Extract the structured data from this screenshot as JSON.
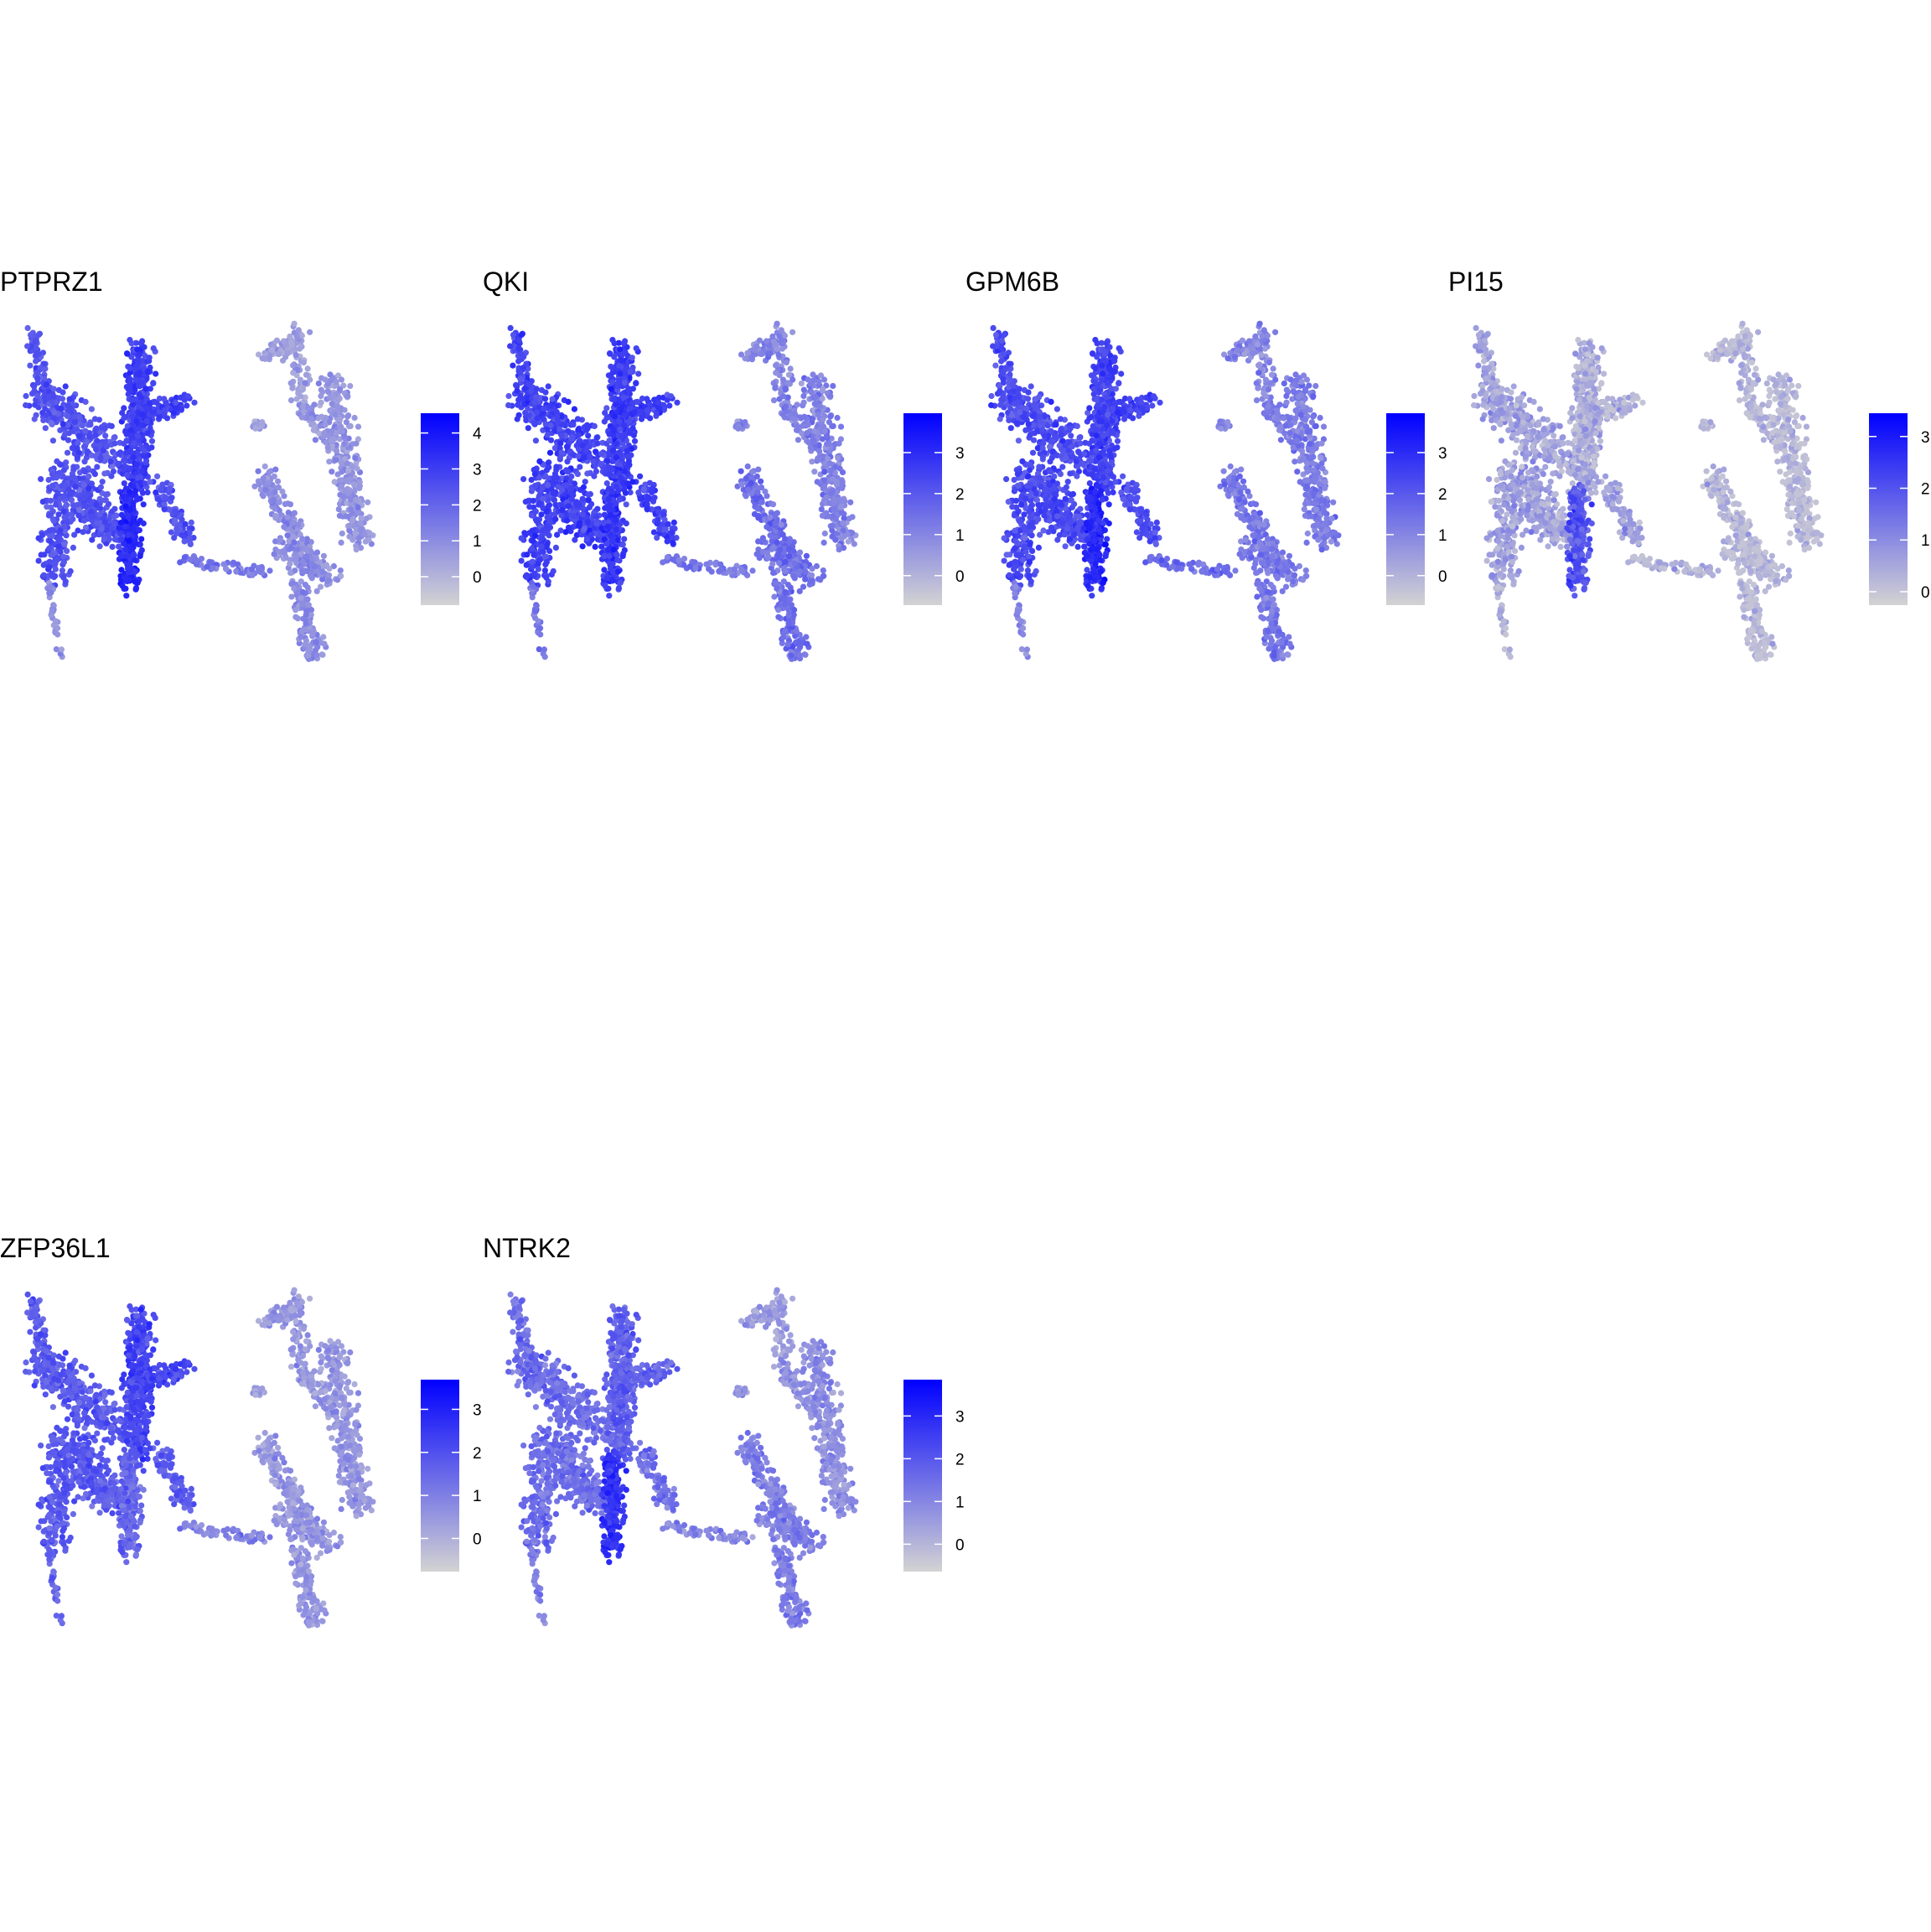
{
  "chart_data": [
    {
      "type": "scatter",
      "title": "PTPRZ1",
      "legend_ticks": [
        0,
        1,
        2,
        3,
        4
      ],
      "color_range": [
        -0.79,
        4.55
      ],
      "low_color": "#D3D3D3",
      "high_color": "#0000FF",
      "legend": "right"
    },
    {
      "type": "scatter",
      "title": "QKI",
      "legend_ticks": [
        0,
        1,
        2,
        3
      ],
      "color_range": [
        -0.72,
        3.96
      ],
      "low_color": "#D3D3D3",
      "high_color": "#0000FF",
      "legend": "right"
    },
    {
      "type": "scatter",
      "title": "GPM6B",
      "legend_ticks": [
        0,
        1,
        2,
        3
      ],
      "color_range": [
        -0.72,
        3.96
      ],
      "low_color": "#D3D3D3",
      "high_color": "#0000FF",
      "legend": "right"
    },
    {
      "type": "scatter",
      "title": "PI15",
      "legend_ticks": [
        0,
        1,
        2,
        3
      ],
      "color_range": [
        -0.26,
        3.45
      ],
      "low_color": "#D3D3D3",
      "high_color": "#0000FF",
      "legend": "right"
    },
    {
      "type": "scatter",
      "title": "ZFP36L1",
      "legend_ticks": [
        0,
        1,
        2,
        3
      ],
      "color_range": [
        -0.77,
        3.69
      ],
      "low_color": "#D3D3D3",
      "high_color": "#0000FF",
      "legend": "right"
    },
    {
      "type": "scatter",
      "title": "NTRK2",
      "legend_ticks": [
        0,
        1,
        2,
        3
      ],
      "color_range": [
        -0.64,
        3.85
      ],
      "low_color": "#D3D3D3",
      "high_color": "#0000FF",
      "legend": "right"
    }
  ]
}
